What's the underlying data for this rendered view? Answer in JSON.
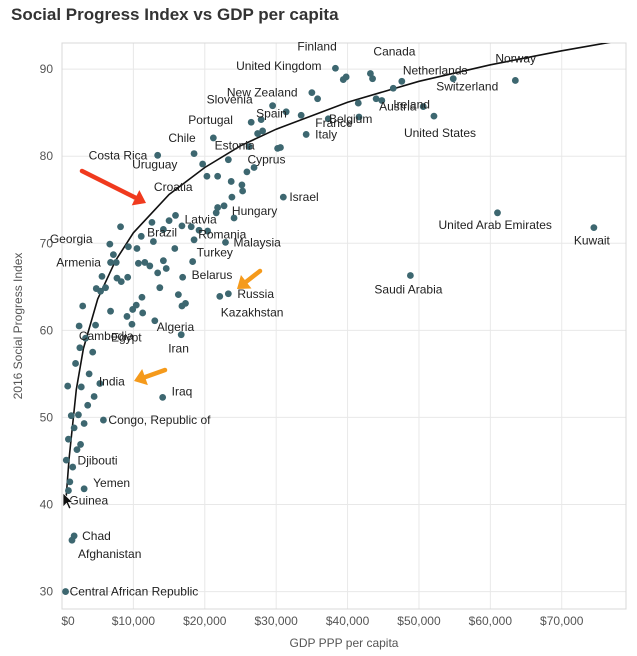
{
  "title": "Social Progress Index vs GDP per capita",
  "chart_data": {
    "type": "scatter",
    "title": "Social Progress Index vs GDP per capita",
    "xlabel": "GDP PPP per capita",
    "ylabel": "2016 Social Progress Index",
    "xlim": [
      0,
      79000
    ],
    "ylim": [
      28,
      93
    ],
    "x_ticks": [
      "$0",
      "$10,000",
      "$20,000",
      "$30,000",
      "$40,000",
      "$50,000",
      "$60,000",
      "$70,000"
    ],
    "y_ticks": [
      "30",
      "40",
      "50",
      "60",
      "70",
      "80",
      "90"
    ],
    "grid": true,
    "colors": {
      "points": "#3d6770",
      "trend": "#111111",
      "red_arrow": "#f03a1e",
      "orange_arrow": "#f59a1b"
    },
    "trendline": {
      "type": "logarithmic",
      "x": [
        500,
        1000,
        2000,
        3000,
        5000,
        7500,
        10000,
        15000,
        20000,
        25000,
        30000,
        40000,
        50000,
        60000,
        70000,
        79000
      ],
      "y": [
        40,
        45.3,
        53.2,
        57.9,
        63.6,
        68.0,
        71.2,
        75.6,
        78.7,
        81.2,
        83.1,
        86.2,
        88.6,
        90.5,
        92.1,
        93.4
      ]
    },
    "labeled_points": [
      {
        "label": "Norway",
        "x": 63500,
        "y": 88.7
      },
      {
        "label": "Finland",
        "x": 38300,
        "y": 90.1
      },
      {
        "label": "Canada",
        "x": 43200,
        "y": 89.5
      },
      {
        "label": "United Kingdom",
        "x": 39800,
        "y": 89.1
      },
      {
        "label": "Netherlands",
        "x": 47600,
        "y": 88.6
      },
      {
        "label": "New Zealand",
        "x": 35000,
        "y": 87.3
      },
      {
        "label": "Switzerland",
        "x": 54800,
        "y": 88.9
      },
      {
        "label": "Austria",
        "x": 44000,
        "y": 86.6
      },
      {
        "label": "Slovenia",
        "x": 29500,
        "y": 85.8
      },
      {
        "label": "Ireland",
        "x": 50600,
        "y": 85.7
      },
      {
        "label": "Spain",
        "x": 33500,
        "y": 84.7
      },
      {
        "label": "Belgium",
        "x": 41600,
        "y": 84.5
      },
      {
        "label": "Portugal",
        "x": 26500,
        "y": 83.9
      },
      {
        "label": "France",
        "x": 37300,
        "y": 84.3
      },
      {
        "label": "United States",
        "x": 52100,
        "y": 84.6
      },
      {
        "label": "Italy",
        "x": 34200,
        "y": 82.5
      },
      {
        "label": "Chile",
        "x": 21200,
        "y": 82.1
      },
      {
        "label": "Estonia",
        "x": 27400,
        "y": 82.6
      },
      {
        "label": "Costa Rica",
        "x": 13400,
        "y": 80.1
      },
      {
        "label": "Cyprus",
        "x": 30600,
        "y": 81.0
      },
      {
        "label": "Uruguay",
        "x": 18500,
        "y": 80.3
      },
      {
        "label": "Croatia",
        "x": 20300,
        "y": 77.7
      },
      {
        "label": "Hungary",
        "x": 23800,
        "y": 75.3
      },
      {
        "label": "Israel",
        "x": 31000,
        "y": 75.3
      },
      {
        "label": "Latvia",
        "x": 21800,
        "y": 74.1
      },
      {
        "label": "Brazil",
        "x": 15000,
        "y": 72.6
      },
      {
        "label": "United Arab Emirates",
        "x": 61000,
        "y": 73.5
      },
      {
        "label": "Romania",
        "x": 18100,
        "y": 71.9
      },
      {
        "label": "Kuwait",
        "x": 74500,
        "y": 71.8
      },
      {
        "label": "Georgia",
        "x": 6700,
        "y": 69.9
      },
      {
        "label": "Malaysia",
        "x": 22900,
        "y": 70.1
      },
      {
        "label": "Turkey",
        "x": 18300,
        "y": 67.9
      },
      {
        "label": "Armenia",
        "x": 7600,
        "y": 67.8
      },
      {
        "label": "Belarus",
        "x": 16900,
        "y": 66.1
      },
      {
        "label": "Saudi Arabia",
        "x": 48800,
        "y": 66.3
      },
      {
        "label": "Russia",
        "x": 23300,
        "y": 64.2
      },
      {
        "label": "Kazakhstan",
        "x": 22100,
        "y": 63.9
      },
      {
        "label": "Algeria",
        "x": 13000,
        "y": 61.1
      },
      {
        "label": "Egypt",
        "x": 9800,
        "y": 60.7
      },
      {
        "label": "Iran",
        "x": 16700,
        "y": 59.5
      },
      {
        "label": "Cambodia",
        "x": 2500,
        "y": 58.0
      },
      {
        "label": "India",
        "x": 5300,
        "y": 53.9
      },
      {
        "label": "Iraq",
        "x": 14100,
        "y": 52.3
      },
      {
        "label": "Congo, Republic of",
        "x": 5800,
        "y": 49.7
      },
      {
        "label": "Djibouti",
        "x": 2600,
        "y": 46.9
      },
      {
        "label": "Yemen",
        "x": 3100,
        "y": 41.8
      },
      {
        "label": "Guinea",
        "x": 900,
        "y": 41.6
      },
      {
        "label": "Chad",
        "x": 1700,
        "y": 36.4
      },
      {
        "label": "Afghanistan",
        "x": 1400,
        "y": 35.9
      },
      {
        "label": "Central African Republic",
        "x": 500,
        "y": 30.0
      }
    ],
    "points": [
      [
        1100,
        42.6
      ],
      [
        600,
        45.1
      ],
      [
        1500,
        44.3
      ],
      [
        900,
        47.5
      ],
      [
        2100,
        46.3
      ],
      [
        1700,
        48.8
      ],
      [
        3100,
        49.3
      ],
      [
        1300,
        50.2
      ],
      [
        2300,
        50.3
      ],
      [
        3600,
        51.4
      ],
      [
        800,
        53.6
      ],
      [
        2700,
        53.5
      ],
      [
        4500,
        52.4
      ],
      [
        3800,
        55.0
      ],
      [
        1900,
        56.2
      ],
      [
        4300,
        57.5
      ],
      [
        3300,
        59.1
      ],
      [
        2400,
        60.5
      ],
      [
        4700,
        60.6
      ],
      [
        6800,
        62.2
      ],
      [
        2900,
        62.8
      ],
      [
        5400,
        64.5
      ],
      [
        4800,
        64.8
      ],
      [
        6100,
        64.9
      ],
      [
        5600,
        66.2
      ],
      [
        7700,
        66.0
      ],
      [
        8300,
        65.6
      ],
      [
        9200,
        66.1
      ],
      [
        6800,
        67.8
      ],
      [
        7200,
        68.7
      ],
      [
        9300,
        69.6
      ],
      [
        10500,
        69.4
      ],
      [
        11100,
        70.8
      ],
      [
        12800,
        70.2
      ],
      [
        10700,
        67.7
      ],
      [
        11600,
        67.8
      ],
      [
        12300,
        67.4
      ],
      [
        13400,
        66.6
      ],
      [
        14600,
        67.1
      ],
      [
        13700,
        64.9
      ],
      [
        11200,
        63.8
      ],
      [
        9900,
        62.4
      ],
      [
        9100,
        61.6
      ],
      [
        10400,
        62.9
      ],
      [
        11300,
        62.0
      ],
      [
        16300,
        64.1
      ],
      [
        16800,
        62.8
      ],
      [
        17300,
        63.1
      ],
      [
        8200,
        71.9
      ],
      [
        12600,
        72.4
      ],
      [
        14200,
        71.6
      ],
      [
        15900,
        73.2
      ],
      [
        16800,
        72.0
      ],
      [
        19200,
        71.5
      ],
      [
        21600,
        73.5
      ],
      [
        22700,
        74.3
      ],
      [
        23700,
        77.1
      ],
      [
        25200,
        76.7
      ],
      [
        25900,
        78.2
      ],
      [
        21800,
        77.7
      ],
      [
        19700,
        79.1
      ],
      [
        23300,
        79.6
      ],
      [
        26200,
        81.1
      ],
      [
        28100,
        82.9
      ],
      [
        30200,
        80.9
      ],
      [
        27900,
        84.2
      ],
      [
        31400,
        85.1
      ],
      [
        35800,
        86.6
      ],
      [
        41500,
        86.1
      ],
      [
        39400,
        88.8
      ],
      [
        43500,
        88.9
      ],
      [
        46400,
        87.8
      ],
      [
        44800,
        86.4
      ],
      [
        26900,
        78.7
      ],
      [
        25300,
        76.0
      ],
      [
        24100,
        72.9
      ],
      [
        20400,
        71.4
      ],
      [
        18500,
        70.4
      ],
      [
        15800,
        69.4
      ],
      [
        14200,
        68.0
      ]
    ],
    "annotations": [
      {
        "type": "arrow",
        "color": "red",
        "target": "Brazil"
      },
      {
        "type": "arrow",
        "color": "orange",
        "target": "Russia"
      },
      {
        "type": "arrow",
        "color": "orange",
        "target": "India"
      }
    ]
  }
}
